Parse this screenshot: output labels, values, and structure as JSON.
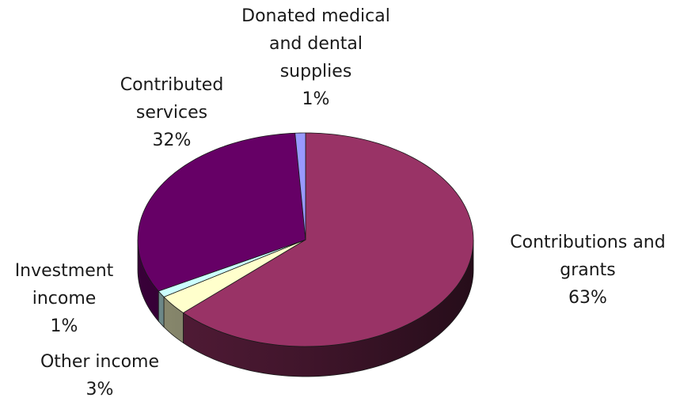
{
  "chart_data": {
    "type": "pie",
    "title": "",
    "legend": "none",
    "style": "3d-exploded-none",
    "slices": [
      {
        "label": "Contributions and grants",
        "value": 63,
        "percent_text": "63%",
        "color": "#993366"
      },
      {
        "label": "Other income",
        "value": 3,
        "percent_text": "3%",
        "color": "#FFFFCC"
      },
      {
        "label": "Investment income",
        "value": 1,
        "percent_text": "1%",
        "color": "#CCFFFF"
      },
      {
        "label": "Contributed services",
        "value": 32,
        "percent_text": "32%",
        "color": "#660066"
      },
      {
        "label": "Donated medical and dental supplies",
        "value": 1,
        "percent_text": "1%",
        "color": "#9999FF"
      }
    ],
    "data_labels": [
      {
        "lines": [
          "Contributions and",
          "grants"
        ],
        "percent_text": "63%"
      },
      {
        "lines": [
          "Other income"
        ],
        "percent_text": "3%"
      },
      {
        "lines": [
          "Investment",
          "income"
        ],
        "percent_text": "1%"
      },
      {
        "lines": [
          "Contributed",
          "services"
        ],
        "percent_text": "32%"
      },
      {
        "lines": [
          "Donated medical",
          "and dental",
          "supplies"
        ],
        "percent_text": "1%"
      }
    ]
  }
}
